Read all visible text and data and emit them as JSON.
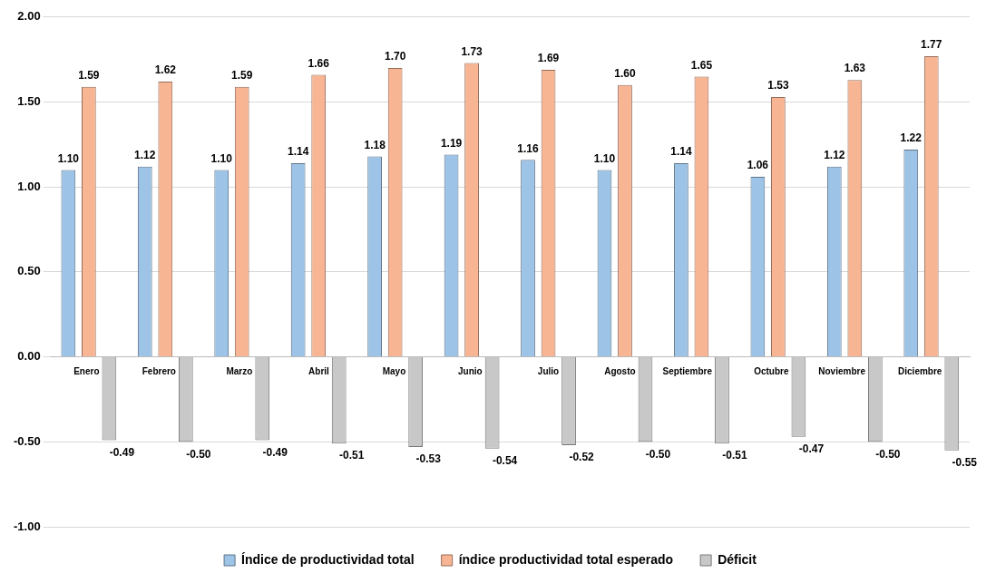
{
  "chart_data": {
    "type": "bar",
    "categories": [
      "Enero",
      "Febrero",
      "Marzo",
      "Abril",
      "Mayo",
      "Junio",
      "Julio",
      "Agosto",
      "Septiembre",
      "Octubre",
      "Noviembre",
      "Diciembre"
    ],
    "series": [
      {
        "name": "Índice de productividad total",
        "color": "#9dc3e6",
        "values": [
          1.1,
          1.12,
          1.1,
          1.14,
          1.18,
          1.19,
          1.16,
          1.1,
          1.14,
          1.06,
          1.12,
          1.22
        ],
        "value_labels": [
          "1.10",
          "1.12",
          "1.10",
          "1.14",
          "1.18",
          "1.19",
          "1.16",
          "1.10",
          "1.14",
          "1.06",
          "1.12",
          "1.22"
        ]
      },
      {
        "name": "índice productividad total esperado",
        "color": "#f8b594",
        "values": [
          1.59,
          1.62,
          1.59,
          1.66,
          1.7,
          1.73,
          1.69,
          1.6,
          1.65,
          1.53,
          1.63,
          1.77
        ],
        "value_labels": [
          "1.59",
          "1.62",
          "1.59",
          "1.66",
          "1.70",
          "1.73",
          "1.69",
          "1.60",
          "1.65",
          "1.53",
          "1.63",
          "1.77"
        ]
      },
      {
        "name": "Déficit",
        "color": "#c8c8c8",
        "values": [
          -0.49,
          -0.5,
          -0.49,
          -0.51,
          -0.53,
          -0.54,
          -0.52,
          -0.5,
          -0.51,
          -0.47,
          -0.5,
          -0.55
        ],
        "value_labels": [
          "-0.49",
          "-0.50",
          "-0.49",
          "-0.51",
          "-0.53",
          "-0.54",
          "-0.52",
          "-0.50",
          "-0.51",
          "-0.47",
          "-0.50",
          "-0.55"
        ]
      }
    ],
    "ylim": [
      -1,
      2
    ],
    "yticks": [
      {
        "value": -1,
        "label": "-1.00"
      },
      {
        "value": -0.5,
        "label": "-0.50"
      },
      {
        "value": 0,
        "label": "0.00"
      },
      {
        "value": 0.5,
        "label": "0.50"
      },
      {
        "value": 1,
        "label": "1.00"
      },
      {
        "value": 1.5,
        "label": "1.50"
      },
      {
        "value": 2,
        "label": "2.00"
      }
    ],
    "grid": "y",
    "legend": "bottom"
  }
}
